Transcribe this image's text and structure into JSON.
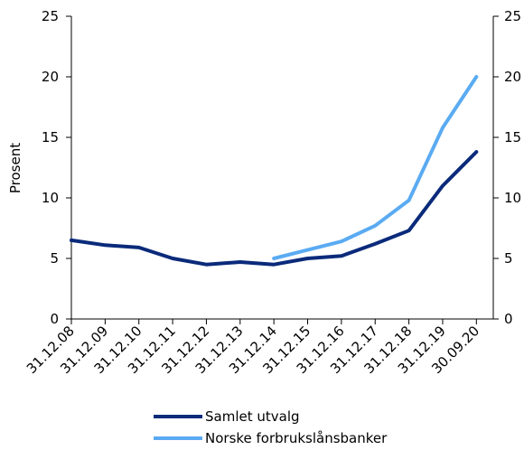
{
  "chart_data": {
    "type": "line",
    "categories": [
      "31.12.08",
      "31.12.09",
      "31.12.10",
      "31.12.11",
      "31.12.12",
      "31.12.13",
      "31.12.14",
      "31.12.15",
      "31.12.16",
      "31.12.17",
      "31.12.18",
      "31.12.19",
      "30.09.20"
    ],
    "series": [
      {
        "name": "Samlet utvalg",
        "color": "#0a2a7a",
        "values": [
          6.5,
          6.1,
          5.9,
          5.0,
          4.5,
          4.7,
          4.5,
          5.0,
          5.2,
          6.2,
          7.3,
          11.0,
          13.8
        ]
      },
      {
        "name": "Norske forbrukslånsbanker",
        "color": "#5aabf2",
        "values": [
          null,
          null,
          null,
          null,
          null,
          null,
          5.0,
          5.7,
          6.4,
          7.7,
          9.8,
          15.8,
          20.0
        ]
      }
    ],
    "ylabel": "Prosent",
    "ylim": [
      0,
      25
    ],
    "yticks": [
      0,
      5,
      10,
      15,
      20,
      25
    ],
    "right_yticks": [
      "0",
      "5",
      "10",
      "15",
      "20",
      "25"
    ],
    "legend_position": "bottom-center"
  }
}
